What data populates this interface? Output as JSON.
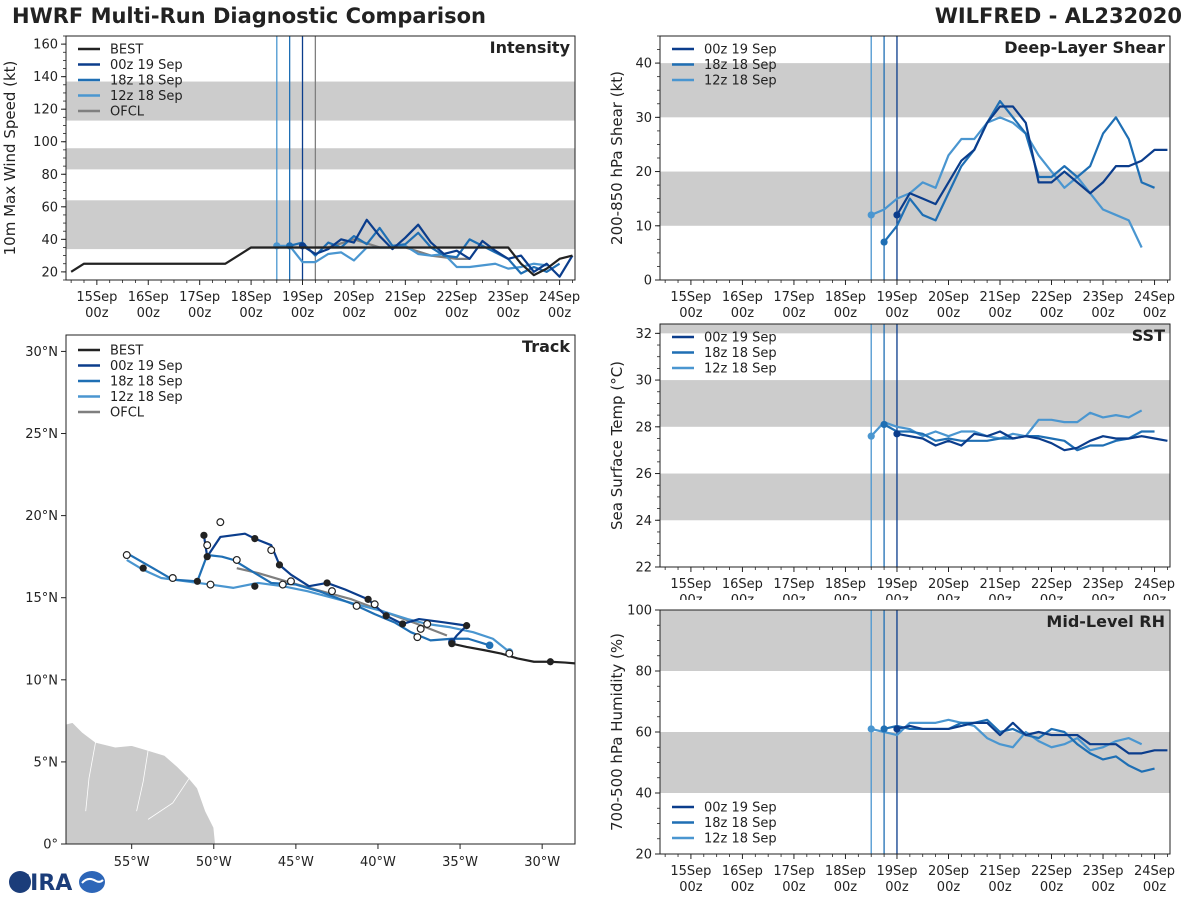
{
  "header": {
    "title_left": "HWRF Multi-Run Diagnostic Comparison",
    "title_right": "WILFRED - AL232020"
  },
  "logo": {
    "text": "CIRA"
  },
  "colors": {
    "best": "#222222",
    "run_00z": "#0b3d8c",
    "run_18z": "#1f6fb4",
    "run_12z": "#4a96d0",
    "ofcl": "#7f7f7f",
    "band": "#cccccc",
    "land": "#cbcbcb"
  },
  "time_ticks": [
    "15Sep\n00z",
    "16Sep\n00z",
    "17Sep\n00z",
    "18Sep\n00z",
    "19Sep\n00z",
    "20Sep\n00z",
    "21Sep\n00z",
    "22Sep\n00z",
    "23Sep\n00z",
    "24Sep\n00z"
  ],
  "chart_data": [
    {
      "id": "intensity",
      "type": "line",
      "title": "Intensity",
      "xlabel": "",
      "ylabel": "10m Max Wind Speed (kt)",
      "xlim": [
        -0.6,
        9.3
      ],
      "ylim": [
        15,
        165
      ],
      "yticks": [
        20,
        40,
        60,
        80,
        100,
        120,
        140,
        160
      ],
      "bands": [
        [
          34,
          64
        ],
        [
          83,
          96
        ],
        [
          113,
          137
        ]
      ],
      "vlines": [
        {
          "x": 3.5,
          "series": "12z 18 Sep"
        },
        {
          "x": 3.75,
          "series": "18z 18 Sep"
        },
        {
          "x": 4.0,
          "series": "00z 19 Sep"
        },
        {
          "x": 4.25,
          "series": "OFCL"
        }
      ],
      "legend": [
        "BEST",
        "00z 19 Sep",
        "18z 18 Sep",
        "12z 18 Sep",
        "OFCL"
      ],
      "series": [
        {
          "name": "BEST",
          "x": [
            -0.5,
            -0.25,
            0,
            0.5,
            1,
            1.5,
            2,
            2.5,
            3,
            3.5,
            4,
            4.25,
            4.5,
            5,
            5.5,
            6,
            6.5,
            7,
            7.5,
            8,
            8.25,
            8.5,
            8.75,
            9.0,
            9.25
          ],
          "y": [
            20,
            25,
            25,
            25,
            25,
            25,
            25,
            25,
            35,
            35,
            35,
            35,
            35,
            35,
            35,
            35,
            35,
            35,
            35,
            35,
            25,
            18,
            22,
            28,
            30
          ]
        },
        {
          "name": "00z 19 Sep",
          "x": [
            4.0,
            4.25,
            4.5,
            4.75,
            5.0,
            5.25,
            5.5,
            5.75,
            6.0,
            6.25,
            6.5,
            6.75,
            7.0,
            7.25,
            7.5,
            7.75,
            8.0,
            8.25,
            8.5,
            8.75,
            9.0,
            9.25
          ],
          "y": [
            36,
            31,
            34,
            40,
            38,
            52,
            42,
            34,
            41,
            49,
            38,
            31,
            33,
            28,
            39,
            33,
            28,
            30,
            20,
            25,
            17,
            30
          ]
        },
        {
          "name": "18z 18 Sep",
          "x": [
            3.75,
            4.0,
            4.25,
            4.5,
            4.75,
            5.0,
            5.25,
            5.5,
            5.75,
            6.0,
            6.25,
            6.5,
            6.75,
            7.0,
            7.25,
            7.5,
            7.75,
            8.0,
            8.25,
            8.5,
            8.75,
            9.0
          ],
          "y": [
            36,
            38,
            30,
            38,
            35,
            42,
            37,
            47,
            36,
            37,
            44,
            35,
            30,
            29,
            40,
            36,
            32,
            28,
            19,
            23,
            20,
            25
          ]
        },
        {
          "name": "12z 18 Sep",
          "x": [
            3.5,
            3.75,
            4.0,
            4.25,
            4.5,
            4.75,
            5.0,
            5.25,
            5.5,
            5.75,
            6.0,
            6.25,
            6.5,
            6.75,
            7.0,
            7.25,
            7.5,
            7.75,
            8.0,
            8.25,
            8.5,
            8.75
          ],
          "y": [
            36,
            36,
            26,
            26,
            31,
            32,
            27,
            35,
            35,
            35,
            36,
            31,
            30,
            31,
            23,
            23,
            24,
            25,
            22,
            23,
            25,
            24
          ]
        },
        {
          "name": "OFCL",
          "x": [
            4.25,
            4.5,
            5.0,
            5.5,
            6.0,
            6.5,
            7.0,
            7.25
          ],
          "y": [
            35,
            35,
            40,
            35,
            35,
            30,
            28,
            28
          ]
        }
      ]
    },
    {
      "id": "shear",
      "type": "line",
      "title": "Deep-Layer Shear",
      "xlabel": "",
      "ylabel": "200-850 hPa Shear (kt)",
      "xlim": [
        -0.6,
        9.3
      ],
      "ylim": [
        0,
        45
      ],
      "yticks": [
        0,
        10,
        20,
        30,
        40
      ],
      "bands": [
        [
          10,
          20
        ],
        [
          30,
          40
        ]
      ],
      "vlines": [
        {
          "x": 3.5,
          "series": "12z 18 Sep"
        },
        {
          "x": 3.75,
          "series": "18z 18 Sep"
        },
        {
          "x": 4.0,
          "series": "00z 19 Sep"
        }
      ],
      "legend": [
        "00z 19 Sep",
        "18z 18 Sep",
        "12z 18 Sep"
      ],
      "series": [
        {
          "name": "00z 19 Sep",
          "x": [
            4.0,
            4.25,
            4.5,
            4.75,
            5.0,
            5.25,
            5.5,
            5.75,
            6.0,
            6.25,
            6.5,
            6.75,
            7.0,
            7.25,
            7.5,
            7.75,
            8.0,
            8.25,
            8.5,
            8.75,
            9.0,
            9.25
          ],
          "y": [
            12,
            16,
            15,
            14,
            18,
            22,
            24,
            29,
            32,
            32,
            29,
            18,
            18,
            20,
            18,
            16,
            18,
            21,
            21,
            22,
            24,
            24
          ]
        },
        {
          "name": "18z 18 Sep",
          "x": [
            3.75,
            4.0,
            4.25,
            4.5,
            4.75,
            5.0,
            5.25,
            5.5,
            5.75,
            6.0,
            6.25,
            6.5,
            6.75,
            7.0,
            7.25,
            7.5,
            7.75,
            8.0,
            8.25,
            8.5,
            8.75,
            9.0
          ],
          "y": [
            7,
            10,
            15,
            12,
            11,
            16,
            21,
            24,
            29,
            33,
            30,
            27,
            19,
            19,
            21,
            19,
            21,
            27,
            30,
            26,
            18,
            17
          ]
        },
        {
          "name": "12z 18 Sep",
          "x": [
            3.5,
            3.75,
            4.0,
            4.25,
            4.5,
            4.75,
            5.0,
            5.25,
            5.5,
            5.75,
            6.0,
            6.25,
            6.5,
            6.75,
            7.0,
            7.25,
            7.5,
            7.75,
            8.0,
            8.25,
            8.5,
            8.75
          ],
          "y": [
            12,
            13,
            15,
            16,
            18,
            17,
            23,
            26,
            26,
            29,
            30,
            29,
            27,
            23,
            20,
            17,
            19,
            16,
            13,
            12,
            11,
            6
          ]
        }
      ]
    },
    {
      "id": "track",
      "type": "line",
      "title": "Track",
      "xlabel": "",
      "ylabel": "",
      "xlim": [
        -59,
        -28
      ],
      "ylim": [
        0,
        31
      ],
      "xtick_values": [
        -55,
        -50,
        -45,
        -40,
        -35,
        -30
      ],
      "xticks": [
        "55°W",
        "50°W",
        "45°W",
        "40°W",
        "35°W",
        "30°W"
      ],
      "ytick_values": [
        0,
        5,
        10,
        15,
        20,
        25,
        30
      ],
      "yticks": [
        "0°",
        "5°N",
        "10°N",
        "15°N",
        "20°N",
        "25°N",
        "30°N"
      ],
      "legend": [
        "BEST",
        "00z 19 Sep",
        "18z 18 Sep",
        "12z 18 Sep",
        "OFCL"
      ],
      "series": [
        {
          "name": "BEST",
          "lon": [
            -28.0,
            -28.6,
            -29.5,
            -30.5,
            -31.5,
            -32.5,
            -33.5,
            -34.6,
            -35.5
          ],
          "lat": [
            11.0,
            11.05,
            11.1,
            11.1,
            11.3,
            11.6,
            11.8,
            12.0,
            12.2
          ]
        },
        {
          "name": "00z 19 Sep",
          "lon": [
            -35.5,
            -35.2,
            -34.6,
            -36.0,
            -37.5,
            -38.5,
            -39.5,
            -40.6,
            -42.0,
            -43.1,
            -44.2,
            -45.3,
            -46.0,
            -46.5,
            -47.5,
            -48.1,
            -49.6,
            -50.4,
            -50.6
          ],
          "lat": [
            12.3,
            12.7,
            13.3,
            13.5,
            13.7,
            13.4,
            13.9,
            14.9,
            15.5,
            15.9,
            15.7,
            16.4,
            17.0,
            18.2,
            18.6,
            18.9,
            18.7,
            17.5,
            18.8
          ]
        },
        {
          "name": "18z 18 Sep",
          "lon": [
            -33.2,
            -34.5,
            -35.5,
            -36.8,
            -38.0,
            -39.0,
            -40.2,
            -41.5,
            -42.8,
            -43.6,
            -45.0,
            -46.5,
            -47.5,
            -48.8,
            -49.5,
            -50.4,
            -51.0,
            -52.5,
            -53.7,
            -55.1
          ],
          "lat": [
            12.1,
            12.5,
            12.5,
            12.4,
            12.9,
            13.5,
            14.0,
            14.6,
            15.1,
            15.4,
            15.8,
            15.9,
            16.5,
            17.3,
            17.5,
            17.6,
            16.0,
            16.1,
            16.8,
            17.6
          ]
        },
        {
          "name": "12z 18 Sep",
          "lon": [
            -32.0,
            -33.0,
            -34.2,
            -35.6,
            -37.0,
            -38.2,
            -39.8,
            -41.3,
            -42.8,
            -44.3,
            -45.8,
            -47.3,
            -48.8,
            -50.2,
            -51.7,
            -53.2,
            -54.3,
            -55.3
          ],
          "lat": [
            11.7,
            12.5,
            12.9,
            13.2,
            13.4,
            13.7,
            14.2,
            14.6,
            15.0,
            15.4,
            15.7,
            15.9,
            15.6,
            15.8,
            16.0,
            16.2,
            16.7,
            17.3
          ]
        },
        {
          "name": "OFCL",
          "lon": [
            -35.8,
            -37.6,
            -39.5,
            -41.6,
            -43.8,
            -45.6,
            -47.3,
            -48.6
          ],
          "lat": [
            12.7,
            13.4,
            14.1,
            14.9,
            15.5,
            16.0,
            16.5,
            16.8
          ]
        }
      ]
    },
    {
      "id": "sst",
      "type": "line",
      "title": "SST",
      "xlabel": "",
      "ylabel": "Sea Surface Temp (°C)",
      "xlim": [
        -0.6,
        9.3
      ],
      "ylim": [
        22,
        32.4
      ],
      "yticks": [
        22,
        24,
        26,
        28,
        30,
        32
      ],
      "bands": [
        [
          24,
          26
        ],
        [
          28,
          30
        ],
        [
          32,
          33
        ]
      ],
      "vlines": [
        {
          "x": 3.5,
          "series": "12z 18 Sep"
        },
        {
          "x": 3.75,
          "series": "18z 18 Sep"
        },
        {
          "x": 4.0,
          "series": "00z 19 Sep"
        }
      ],
      "legend": [
        "00z 19 Sep",
        "18z 18 Sep",
        "12z 18 Sep"
      ],
      "series": [
        {
          "name": "00z 19 Sep",
          "x": [
            4.0,
            4.25,
            4.5,
            4.75,
            5.0,
            5.25,
            5.5,
            5.75,
            6.0,
            6.25,
            6.5,
            6.75,
            7.0,
            7.25,
            7.5,
            7.75,
            8.0,
            8.25,
            8.5,
            8.75,
            9.0,
            9.25
          ],
          "y": [
            27.7,
            27.6,
            27.5,
            27.2,
            27.4,
            27.2,
            27.7,
            27.6,
            27.8,
            27.5,
            27.6,
            27.5,
            27.3,
            27.0,
            27.1,
            27.4,
            27.6,
            27.5,
            27.5,
            27.6,
            27.5,
            27.4
          ]
        },
        {
          "name": "18z 18 Sep",
          "x": [
            3.75,
            4.0,
            4.25,
            4.5,
            4.75,
            5.0,
            5.25,
            5.5,
            5.75,
            6.0,
            6.25,
            6.5,
            6.75,
            7.0,
            7.25,
            7.5,
            7.75,
            8.0,
            8.25,
            8.5,
            8.75,
            9.0
          ],
          "y": [
            28.1,
            27.8,
            27.8,
            27.7,
            27.4,
            27.5,
            27.4,
            27.4,
            27.4,
            27.5,
            27.5,
            27.6,
            27.6,
            27.5,
            27.4,
            27.0,
            27.2,
            27.2,
            27.4,
            27.5,
            27.8,
            27.8
          ]
        },
        {
          "name": "12z 18 Sep",
          "x": [
            3.5,
            3.75,
            4.0,
            4.25,
            4.5,
            4.75,
            5.0,
            5.25,
            5.5,
            5.75,
            6.0,
            6.25,
            6.5,
            6.75,
            7.0,
            7.25,
            7.5,
            7.75,
            8.0,
            8.25,
            8.5,
            8.75
          ],
          "y": [
            27.6,
            28.2,
            28.0,
            27.9,
            27.6,
            27.8,
            27.6,
            27.8,
            27.8,
            27.6,
            27.5,
            27.7,
            27.6,
            28.3,
            28.3,
            28.2,
            28.2,
            28.6,
            28.4,
            28.5,
            28.4,
            28.7
          ]
        }
      ]
    },
    {
      "id": "rh",
      "type": "line",
      "title": "Mid-Level RH",
      "xlabel": "",
      "ylabel": "700-500 hPa Humidity (%)",
      "xlim": [
        -0.6,
        9.3
      ],
      "ylim": [
        20,
        100
      ],
      "yticks": [
        20,
        40,
        60,
        80,
        100
      ],
      "bands": [
        [
          40,
          60
        ],
        [
          80,
          100
        ]
      ],
      "vlines": [
        {
          "x": 3.5,
          "series": "12z 18 Sep"
        },
        {
          "x": 3.75,
          "series": "18z 18 Sep"
        },
        {
          "x": 4.0,
          "series": "00z 19 Sep"
        }
      ],
      "legend": [
        "00z 19 Sep",
        "18z 18 Sep",
        "12z 18 Sep"
      ],
      "series": [
        {
          "name": "00z 19 Sep",
          "x": [
            4.0,
            4.25,
            4.5,
            4.75,
            5.0,
            5.25,
            5.5,
            5.75,
            6.0,
            6.25,
            6.5,
            6.75,
            7.0,
            7.25,
            7.5,
            7.75,
            8.0,
            8.25,
            8.5,
            8.75,
            9.0,
            9.25
          ],
          "y": [
            61,
            62,
            61,
            61,
            61,
            62,
            63,
            63,
            59,
            63,
            59,
            60,
            59,
            59,
            59,
            56,
            56,
            56,
            53,
            53,
            54,
            54
          ]
        },
        {
          "name": "18z 18 Sep",
          "x": [
            3.75,
            4.0,
            4.25,
            4.5,
            4.75,
            5.0,
            5.25,
            5.5,
            5.75,
            6.0,
            6.25,
            6.5,
            6.75,
            7.0,
            7.25,
            7.5,
            7.75,
            8.0,
            8.25,
            8.5,
            8.75,
            9.0
          ],
          "y": [
            61,
            62,
            61,
            61,
            61,
            61,
            63,
            63,
            64,
            60,
            61,
            59,
            58,
            61,
            60,
            56,
            53,
            51,
            52,
            49,
            47,
            48
          ]
        },
        {
          "name": "12z 18 Sep",
          "x": [
            3.5,
            3.75,
            4.0,
            4.25,
            4.5,
            4.75,
            5.0,
            5.25,
            5.5,
            5.75,
            6.0,
            6.25,
            6.5,
            6.75,
            7.0,
            7.25,
            7.5,
            7.75,
            8.0,
            8.25,
            8.5,
            8.75
          ],
          "y": [
            61,
            60,
            59,
            63,
            63,
            63,
            64,
            63,
            62,
            58,
            56,
            55,
            60,
            57,
            55,
            56,
            58,
            54,
            55,
            57,
            58,
            56
          ]
        }
      ]
    }
  ]
}
